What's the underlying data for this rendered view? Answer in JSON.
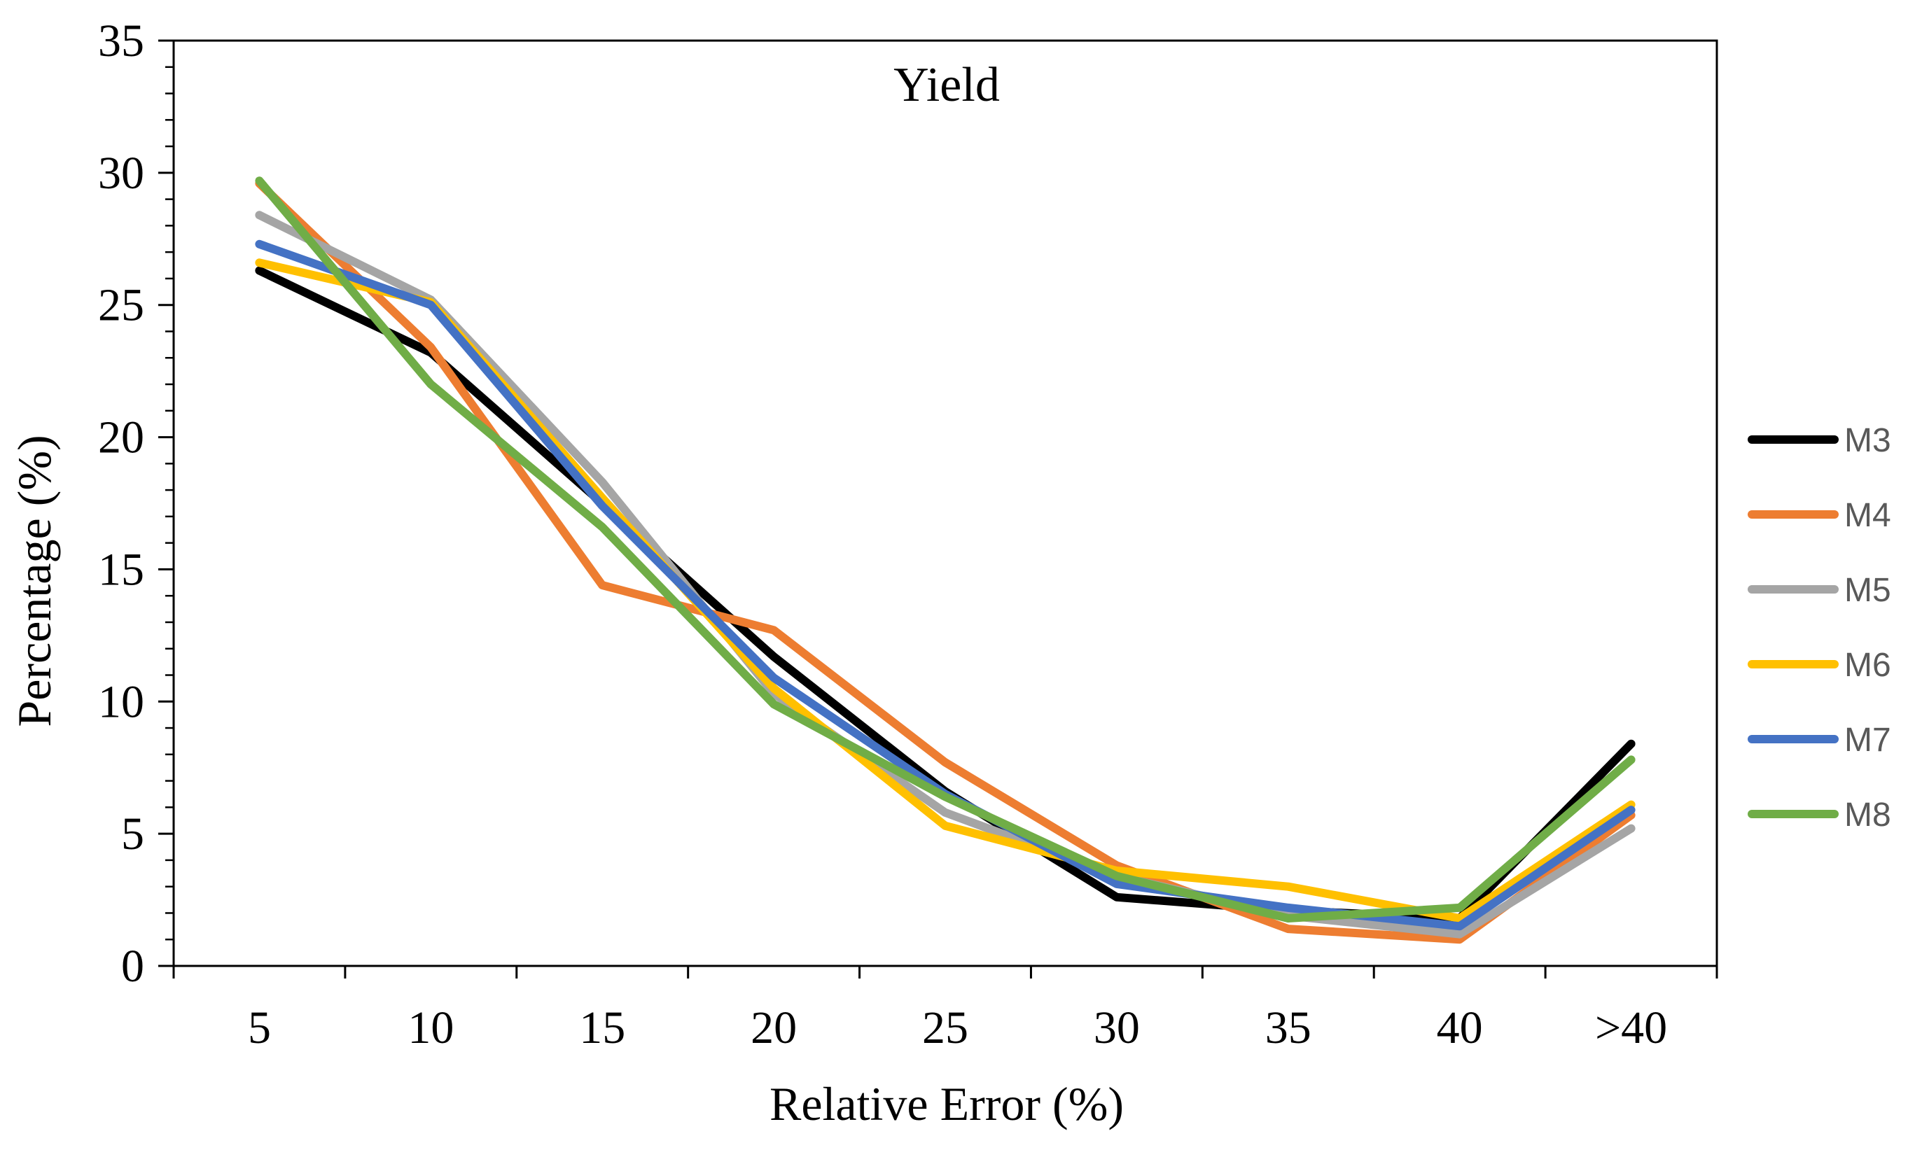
{
  "chart_data": {
    "type": "line",
    "title": "Yield",
    "xlabel": "Relative Error (%)",
    "ylabel": "Percentage (%)",
    "categories": [
      "5",
      "10",
      "15",
      "20",
      "25",
      "30",
      "35",
      "40",
      ">40"
    ],
    "ylim": [
      0,
      35
    ],
    "yticks": [
      "0",
      "5",
      "10",
      "15",
      "20",
      "25",
      "30",
      "35"
    ],
    "grid": false,
    "legend_position": "right",
    "series": [
      {
        "name": "M3",
        "color": "#000000",
        "values": [
          26.3,
          23.2,
          17.5,
          11.7,
          6.6,
          2.6,
          2.1,
          1.8,
          8.4
        ]
      },
      {
        "name": "M4",
        "color": "#ED7D31",
        "values": [
          29.6,
          23.4,
          14.4,
          12.7,
          7.7,
          3.8,
          1.4,
          1.0,
          5.7
        ]
      },
      {
        "name": "M5",
        "color": "#A5A5A5",
        "values": [
          28.4,
          25.2,
          18.3,
          10.3,
          5.8,
          3.4,
          1.9,
          1.2,
          5.2
        ]
      },
      {
        "name": "M6",
        "color": "#FFC000",
        "values": [
          26.6,
          25.1,
          17.7,
          10.5,
          5.3,
          3.6,
          3.0,
          1.8,
          6.1
        ]
      },
      {
        "name": "M7",
        "color": "#4472C4",
        "values": [
          27.3,
          25.0,
          17.4,
          10.9,
          6.5,
          3.1,
          2.2,
          1.5,
          5.9
        ]
      },
      {
        "name": "M8",
        "color": "#70AD47",
        "values": [
          29.7,
          22.0,
          16.6,
          9.9,
          6.4,
          3.4,
          1.8,
          2.2,
          7.8
        ]
      }
    ]
  }
}
